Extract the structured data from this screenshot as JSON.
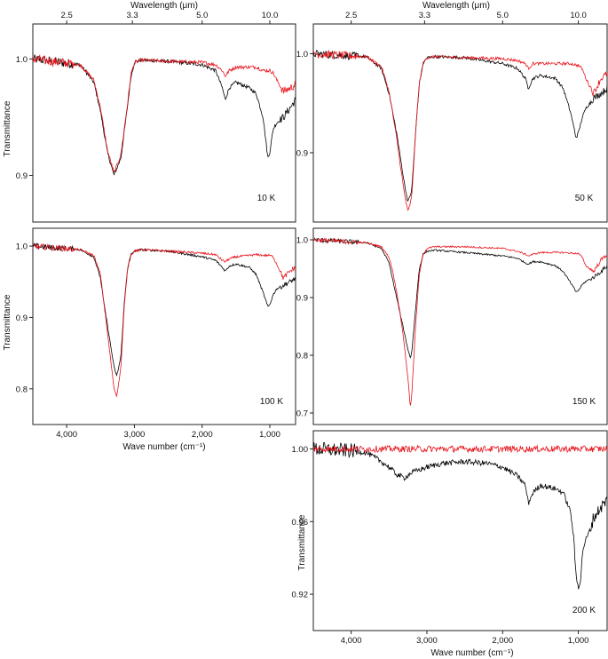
{
  "figure": {
    "top_axis_title": "Wavelength (μm)",
    "bottom_axis_title": "Wave number (cm⁻¹)",
    "y_axis_title": "Transmittance"
  },
  "chart_data": [
    {
      "type": "line",
      "temperature_label": "10 K",
      "xlabel": "",
      "ylabel": "Transmittance",
      "xlim": [
        4500,
        620
      ],
      "ylim": [
        0.86,
        1.03
      ],
      "yticks": [
        0.9,
        1.0
      ],
      "ytick_labels": [
        "0.9",
        "1.0"
      ],
      "top_ticks": [
        2.5,
        3.3,
        5.0,
        10.0
      ],
      "top_tick_labels": [
        "2.5",
        "3.3",
        "5.0",
        "10.0"
      ],
      "top_axis_title": "Wavelength (μm)",
      "series": [
        {
          "color": "#000000",
          "x": [
            4500,
            3800,
            3600,
            3500,
            3400,
            3300,
            3200,
            3100,
            3050,
            3000,
            2900,
            2500,
            2000,
            1800,
            1700,
            1660,
            1600,
            1500,
            1300,
            1200,
            1100,
            1030,
            1000,
            950,
            900,
            800,
            700,
            620
          ],
          "y": [
            1.0,
            0.995,
            0.98,
            0.955,
            0.92,
            0.9,
            0.915,
            0.96,
            0.985,
            0.997,
            0.999,
            0.998,
            0.995,
            0.99,
            0.975,
            0.965,
            0.975,
            0.98,
            0.975,
            0.97,
            0.95,
            0.915,
            0.92,
            0.94,
            0.945,
            0.95,
            0.958,
            0.965
          ]
        },
        {
          "color": "#e8141c",
          "x": [
            4500,
            3800,
            3600,
            3500,
            3400,
            3300,
            3200,
            3100,
            3050,
            3000,
            2900,
            2500,
            2000,
            1800,
            1700,
            1660,
            1600,
            1500,
            1300,
            1200,
            1100,
            1000,
            950,
            900,
            800,
            700,
            620
          ],
          "y": [
            1.0,
            0.995,
            0.982,
            0.958,
            0.922,
            0.902,
            0.918,
            0.962,
            0.987,
            0.997,
            0.999,
            0.998,
            0.997,
            0.995,
            0.99,
            0.985,
            0.99,
            0.993,
            0.993,
            0.993,
            0.99,
            0.99,
            0.988,
            0.982,
            0.972,
            0.975,
            0.978
          ]
        }
      ]
    },
    {
      "type": "line",
      "temperature_label": "50 K",
      "xlabel": "",
      "ylabel": "",
      "xlim": [
        4500,
        620
      ],
      "ylim": [
        0.83,
        1.03
      ],
      "yticks": [
        0.9,
        1.0
      ],
      "ytick_labels": [
        "0.9",
        "1.0"
      ],
      "top_ticks": [
        2.5,
        3.3,
        5.0,
        10.0
      ],
      "top_tick_labels": [
        "2.5",
        "3.3",
        "5.0",
        "10.0"
      ],
      "top_axis_title": "Wavelength (μm)",
      "series": [
        {
          "color": "#000000",
          "x": [
            4500,
            3800,
            3600,
            3500,
            3400,
            3300,
            3250,
            3200,
            3150,
            3100,
            3050,
            3000,
            2900,
            2500,
            2000,
            1800,
            1700,
            1660,
            1600,
            1500,
            1300,
            1200,
            1100,
            1030,
            1000,
            950,
            900,
            800,
            700,
            620
          ],
          "y": [
            1.0,
            0.997,
            0.985,
            0.96,
            0.92,
            0.87,
            0.85,
            0.862,
            0.92,
            0.97,
            0.99,
            0.996,
            0.997,
            0.996,
            0.99,
            0.985,
            0.975,
            0.965,
            0.975,
            0.978,
            0.975,
            0.965,
            0.94,
            0.915,
            0.92,
            0.935,
            0.945,
            0.955,
            0.96,
            0.965
          ]
        },
        {
          "color": "#e8141c",
          "x": [
            4500,
            3800,
            3600,
            3500,
            3400,
            3300,
            3250,
            3200,
            3150,
            3100,
            3050,
            3000,
            2900,
            2500,
            2000,
            1800,
            1700,
            1660,
            1600,
            1500,
            1300,
            1200,
            1100,
            1000,
            950,
            900,
            800,
            700,
            620
          ],
          "y": [
            1.0,
            0.997,
            0.987,
            0.962,
            0.915,
            0.86,
            0.84,
            0.855,
            0.92,
            0.97,
            0.99,
            0.996,
            0.997,
            0.996,
            0.995,
            0.993,
            0.99,
            0.985,
            0.99,
            0.99,
            0.99,
            0.99,
            0.99,
            0.988,
            0.985,
            0.975,
            0.96,
            0.975,
            0.98
          ]
        }
      ]
    },
    {
      "type": "line",
      "temperature_label": "100 K",
      "xlabel": "",
      "ylabel": "Transmittance",
      "xlim": [
        4500,
        620
      ],
      "ylim": [
        0.75,
        1.025
      ],
      "yticks": [
        0.8,
        0.9,
        1.0
      ],
      "ytick_labels": [
        "0.8",
        "0.9",
        "1.0"
      ],
      "series": [
        {
          "color": "#000000",
          "x": [
            4500,
            3800,
            3600,
            3500,
            3450,
            3400,
            3350,
            3300,
            3260,
            3200,
            3150,
            3100,
            3050,
            3000,
            2900,
            2500,
            2000,
            1800,
            1700,
            1660,
            1600,
            1500,
            1300,
            1200,
            1100,
            1030,
            1000,
            950,
            900,
            800,
            700,
            620
          ],
          "y": [
            1.0,
            0.995,
            0.985,
            0.955,
            0.92,
            0.89,
            0.86,
            0.83,
            0.818,
            0.845,
            0.92,
            0.97,
            0.988,
            0.993,
            0.995,
            0.993,
            0.985,
            0.98,
            0.97,
            0.965,
            0.972,
            0.975,
            0.97,
            0.96,
            0.935,
            0.915,
            0.918,
            0.932,
            0.94,
            0.945,
            0.95,
            0.955
          ]
        },
        {
          "color": "#e8141c",
          "x": [
            4500,
            3800,
            3600,
            3500,
            3450,
            3400,
            3350,
            3300,
            3260,
            3200,
            3150,
            3100,
            3050,
            3000,
            2900,
            2500,
            2000,
            1800,
            1700,
            1660,
            1600,
            1500,
            1300,
            1200,
            1100,
            1000,
            950,
            900,
            800,
            700,
            620
          ],
          "y": [
            1.0,
            0.995,
            0.987,
            0.96,
            0.92,
            0.88,
            0.84,
            0.8,
            0.79,
            0.83,
            0.915,
            0.968,
            0.988,
            0.993,
            0.995,
            0.993,
            0.99,
            0.988,
            0.98,
            0.978,
            0.982,
            0.985,
            0.987,
            0.988,
            0.987,
            0.987,
            0.985,
            0.975,
            0.955,
            0.965,
            0.97
          ]
        }
      ]
    },
    {
      "type": "line",
      "temperature_label": "150 K",
      "xlabel": "",
      "ylabel": "",
      "xlim": [
        4500,
        620
      ],
      "ylim": [
        0.68,
        1.02
      ],
      "yticks": [
        0.7,
        0.8,
        0.9,
        1.0
      ],
      "ytick_labels": [
        "0.7",
        "0.8",
        "0.9",
        "1.0"
      ],
      "series": [
        {
          "color": "#000000",
          "x": [
            4500,
            3800,
            3600,
            3500,
            3450,
            3400,
            3350,
            3300,
            3250,
            3220,
            3200,
            3150,
            3100,
            3050,
            3000,
            2900,
            2500,
            2000,
            1800,
            1700,
            1660,
            1600,
            1500,
            1300,
            1200,
            1100,
            1030,
            1000,
            950,
            900,
            800,
            700,
            620
          ],
          "y": [
            1.0,
            0.995,
            0.985,
            0.96,
            0.93,
            0.9,
            0.87,
            0.84,
            0.81,
            0.795,
            0.805,
            0.88,
            0.95,
            0.975,
            0.98,
            0.982,
            0.978,
            0.972,
            0.968,
            0.96,
            0.958,
            0.962,
            0.962,
            0.955,
            0.945,
            0.925,
            0.91,
            0.912,
            0.922,
            0.928,
            0.935,
            0.945,
            0.955
          ]
        },
        {
          "color": "#e8141c",
          "x": [
            4500,
            3800,
            3600,
            3500,
            3450,
            3400,
            3350,
            3300,
            3250,
            3220,
            3200,
            3150,
            3100,
            3050,
            3000,
            2900,
            2500,
            2000,
            1800,
            1700,
            1660,
            1600,
            1500,
            1300,
            1200,
            1100,
            1000,
            950,
            900,
            800,
            700,
            620
          ],
          "y": [
            1.0,
            0.995,
            0.988,
            0.97,
            0.945,
            0.91,
            0.87,
            0.82,
            0.76,
            0.71,
            0.73,
            0.85,
            0.94,
            0.975,
            0.985,
            0.988,
            0.988,
            0.985,
            0.98,
            0.975,
            0.972,
            0.975,
            0.978,
            0.978,
            0.978,
            0.977,
            0.976,
            0.97,
            0.955,
            0.945,
            0.965,
            0.975
          ]
        }
      ]
    },
    {
      "type": "line",
      "temperature_label": "200 K",
      "xlabel": "Wave number (cm⁻¹)",
      "ylabel": "Transmittance",
      "xlim": [
        4500,
        620
      ],
      "ylim": [
        0.9,
        1.01
      ],
      "yticks": [
        0.92,
        0.96,
        1.0
      ],
      "ytick_labels": [
        "0.92",
        "0.96",
        "1.00"
      ],
      "series": [
        {
          "color": "#000000",
          "x": [
            4500,
            4000,
            3800,
            3600,
            3500,
            3400,
            3300,
            3200,
            3000,
            2800,
            2500,
            2200,
            2000,
            1800,
            1700,
            1660,
            1600,
            1500,
            1300,
            1200,
            1100,
            1060,
            1030,
            1000,
            970,
            940,
            900,
            850,
            800,
            700,
            620
          ],
          "y": [
            1.0,
            0.999,
            0.998,
            0.993,
            0.99,
            0.986,
            0.984,
            0.987,
            0.99,
            0.992,
            0.993,
            0.992,
            0.99,
            0.985,
            0.98,
            0.97,
            0.976,
            0.98,
            0.978,
            0.976,
            0.965,
            0.95,
            0.93,
            0.924,
            0.928,
            0.945,
            0.95,
            0.955,
            0.962,
            0.968,
            0.972
          ]
        },
        {
          "color": "#e8141c",
          "x": [
            4500,
            4200,
            4000,
            3800,
            3600,
            3400,
            3200,
            3000,
            2800,
            2600,
            2400,
            2200,
            2000,
            1800,
            1600,
            1400,
            1200,
            1000,
            900,
            800,
            700,
            620
          ],
          "y": [
            1.0,
            1.0,
            1.0,
            1.0,
            1.0,
            1.0,
            1.0,
            1.0,
            1.0,
            1.0,
            1.0,
            1.0,
            1.0,
            1.0,
            1.0,
            1.0,
            1.0,
            1.0,
            1.0,
            1.0,
            1.0,
            1.0
          ]
        }
      ]
    }
  ],
  "shared_x_axis": {
    "ticks": [
      4000,
      3000,
      2000,
      1000
    ],
    "tick_labels": [
      "4,000",
      "3,000",
      "2,000",
      "1,000"
    ]
  }
}
